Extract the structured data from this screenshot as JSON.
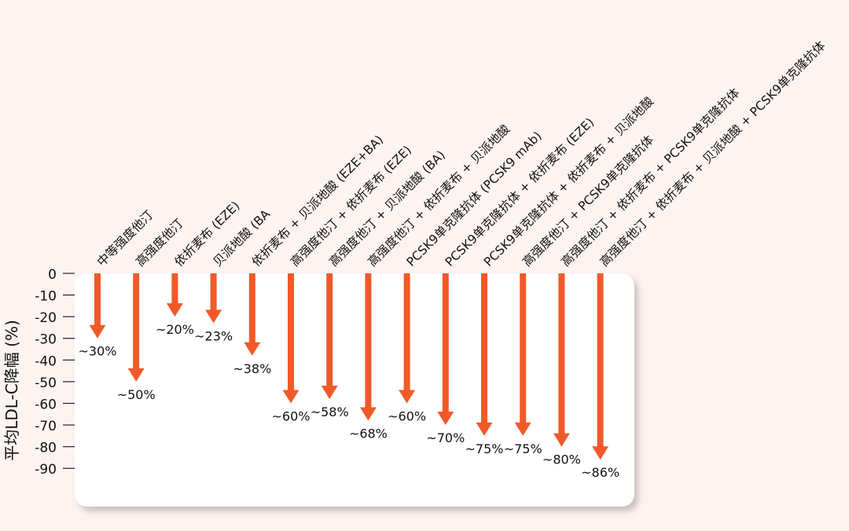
{
  "chart_data": {
    "type": "bar",
    "ylabel": "平均LDL-C降幅 (%)",
    "ylim": [
      -90,
      0
    ],
    "yticks": [
      0,
      -10,
      -20,
      -30,
      -40,
      -50,
      -60,
      -70,
      -80,
      -90
    ],
    "grid": false,
    "categories": [
      "中等强度他汀",
      "高强度他汀",
      "依折麦布 (EZE)",
      "贝派地酸 (BA",
      "依折麦布 + 贝派地酸 (EZE+BA)",
      "高强度他汀 + 依折麦布 (EZE)",
      "高强度他汀 + 贝派地酸 (BA)",
      "高强度他汀 + 依折麦布 + 贝派地酸",
      "PCSK9单克隆抗体 (PCSK9 mAb)",
      "PCSK9单克隆抗体 + 依折麦布 (EZE)",
      "PCSK9单克隆抗体 + 依折麦布 + 贝派地酸",
      "高强度他汀 + PCSK9单克隆抗体",
      "高强度他汀 + 依折麦布 + PCSK9单克隆抗体",
      "高强度他汀 + 依折麦布 + 贝派地酸 + PCSK9单克隆抗体"
    ],
    "values": [
      -30,
      -50,
      -20,
      -23,
      -38,
      -60,
      -58,
      -68,
      -60,
      -70,
      -75,
      -75,
      -80,
      -86
    ],
    "data_labels": [
      "~30%",
      "~50%",
      "~20%",
      "~23%",
      "~38%",
      "~60%",
      "~58%",
      "~68%",
      "~60%",
      "~70%",
      "~75%",
      "~75%",
      "~80%",
      "~86%"
    ],
    "colors": {
      "arrow": "#f05a28",
      "panel": "#ffffff",
      "panel_shadow": "#c9c0bf",
      "background": "#fdf3f1",
      "text": "#111111"
    }
  }
}
